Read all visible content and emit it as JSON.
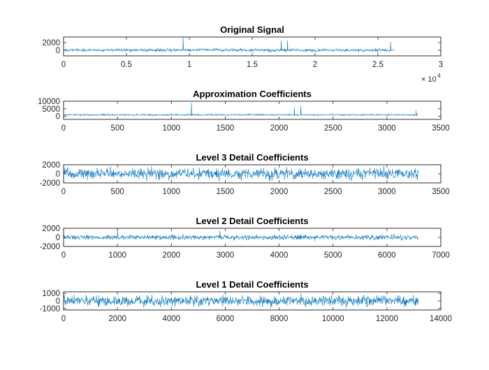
{
  "figure": {
    "background": "#ffffff",
    "line_color": "#0072BD",
    "axis_color": "#262626"
  },
  "chart_data": [
    {
      "type": "line",
      "title": "Original Signal",
      "x_label_exponent": {
        "base": "× 10",
        "power": "4"
      },
      "xlim": [
        0,
        30000
      ],
      "ylim": [
        -1500,
        3500
      ],
      "xticks": [
        0,
        5000,
        10000,
        15000,
        20000,
        25000,
        30000
      ],
      "xtick_labels": [
        "0",
        "0.5",
        "1",
        "1.5",
        "2",
        "2.5",
        "3"
      ],
      "yticks": [
        0,
        2000
      ],
      "ytick_labels": [
        "0",
        "2000"
      ],
      "series": [
        {
          "n_samples": 26300,
          "baseline": 0,
          "noise_amplitude": 700,
          "spikes": [
            {
              "x": 9500,
              "value": 3500
            },
            {
              "x": 17300,
              "value": 2600
            },
            {
              "x": 17800,
              "value": 2600
            },
            {
              "x": 26000,
              "value": 2200
            }
          ]
        }
      ]
    },
    {
      "type": "line",
      "title": "Approximation Coefficients",
      "xlim": [
        0,
        3500
      ],
      "ylim": [
        -2000,
        10000
      ],
      "xticks": [
        0,
        500,
        1000,
        1500,
        2000,
        2500,
        3000,
        3500
      ],
      "xtick_labels": [
        "0",
        "500",
        "1000",
        "1500",
        "2000",
        "2500",
        "3000",
        "3500"
      ],
      "yticks": [
        0,
        5000,
        10000
      ],
      "ytick_labels": [
        "0",
        "5000",
        "10000"
      ],
      "series": [
        {
          "n_samples": 3290,
          "baseline": 1000,
          "noise_amplitude": 900,
          "spikes": [
            {
              "x": 1185,
              "value": 9000
            },
            {
              "x": 2140,
              "value": 6000
            },
            {
              "x": 2200,
              "value": 7000
            },
            {
              "x": 3270,
              "value": 4000
            }
          ]
        }
      ]
    },
    {
      "type": "line",
      "title": "Level 3 Detail Coefficients",
      "xlim": [
        0,
        3500
      ],
      "ylim": [
        -2000,
        2000
      ],
      "xticks": [
        0,
        500,
        1000,
        1500,
        2000,
        2500,
        3000,
        3500
      ],
      "xtick_labels": [
        "0",
        "500",
        "1000",
        "1500",
        "2000",
        "2500",
        "3000",
        "3500"
      ],
      "yticks": [
        -2000,
        0,
        2000
      ],
      "ytick_labels": [
        "-2000",
        "0",
        "2000"
      ],
      "series": [
        {
          "n_samples": 3290,
          "baseline": 0,
          "noise_amplitude": 1900,
          "spikes": []
        }
      ]
    },
    {
      "type": "line",
      "title": "Level 2 Detail Coefficients",
      "xlim": [
        0,
        7000
      ],
      "ylim": [
        -2000,
        2000
      ],
      "xticks": [
        0,
        1000,
        2000,
        3000,
        4000,
        5000,
        6000,
        7000
      ],
      "xtick_labels": [
        "0",
        "1000",
        "2000",
        "3000",
        "4000",
        "5000",
        "6000",
        "7000"
      ],
      "yticks": [
        -2000,
        0,
        2000
      ],
      "ytick_labels": [
        "-2000",
        "0",
        "2000"
      ],
      "series": [
        {
          "n_samples": 6580,
          "baseline": 0,
          "noise_amplitude": 900,
          "spikes": [
            {
              "x": 1000,
              "value": 1800
            },
            {
              "x": 2900,
              "value": 1500
            }
          ]
        }
      ]
    },
    {
      "type": "line",
      "title": "Level 1 Detail Coefficients",
      "xlim": [
        0,
        14000
      ],
      "ylim": [
        -1200,
        1200
      ],
      "xticks": [
        0,
        2000,
        4000,
        6000,
        8000,
        10000,
        12000,
        14000
      ],
      "xtick_labels": [
        "0",
        "2000",
        "4000",
        "6000",
        "8000",
        "10000",
        "12000",
        "14000"
      ],
      "yticks": [
        -1000,
        0,
        1000
      ],
      "ytick_labels": [
        "-1000",
        "0",
        "1000"
      ],
      "series": [
        {
          "n_samples": 13160,
          "baseline": 0,
          "noise_amplitude": 1100,
          "spikes": []
        }
      ]
    }
  ]
}
